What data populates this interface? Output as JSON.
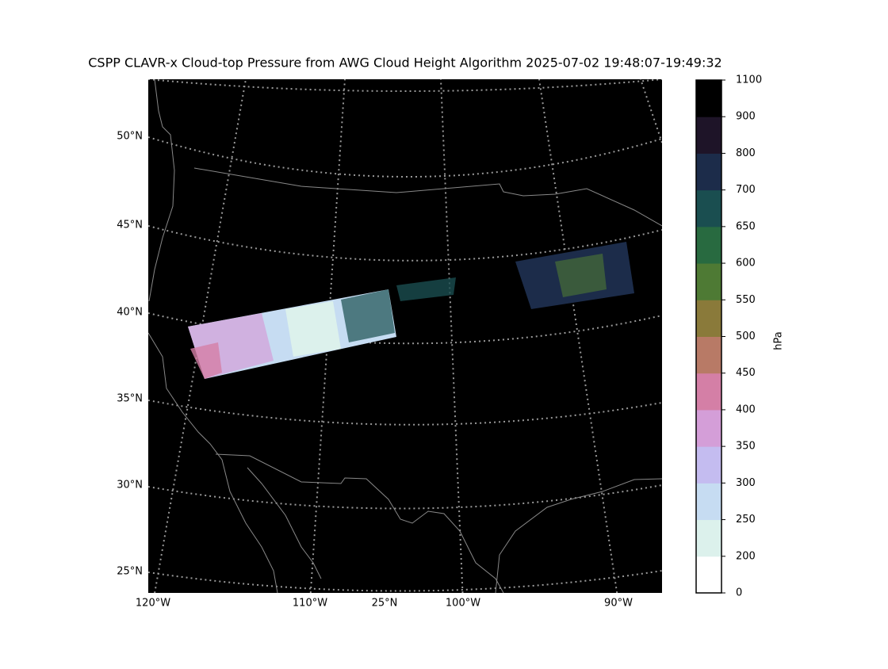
{
  "title": "CSPP CLAVR-x Cloud-top Pressure from AWG Cloud Height Algorithm 2025-07-02 19:48:07-19:49:32",
  "map": {
    "lat_labels": [
      "50°N",
      "45°N",
      "40°N",
      "35°N",
      "30°N",
      "25°N"
    ],
    "lon_labels": [
      "120°W",
      "110°W",
      "25°N",
      "100°W",
      "90°W"
    ]
  },
  "colorbar": {
    "label": "hPa",
    "ticks": [
      0,
      200,
      250,
      300,
      350,
      400,
      450,
      500,
      550,
      600,
      650,
      700,
      800,
      900,
      1100
    ],
    "colors": [
      "#ffffff",
      "#dcf1ec",
      "#c6dcf2",
      "#c4bcf0",
      "#d49ed8",
      "#d47fa6",
      "#b87a66",
      "#8a7a3a",
      "#4e7a34",
      "#286a40",
      "#1a4e50",
      "#1c2c4a",
      "#1e1428",
      "#000000"
    ]
  }
}
